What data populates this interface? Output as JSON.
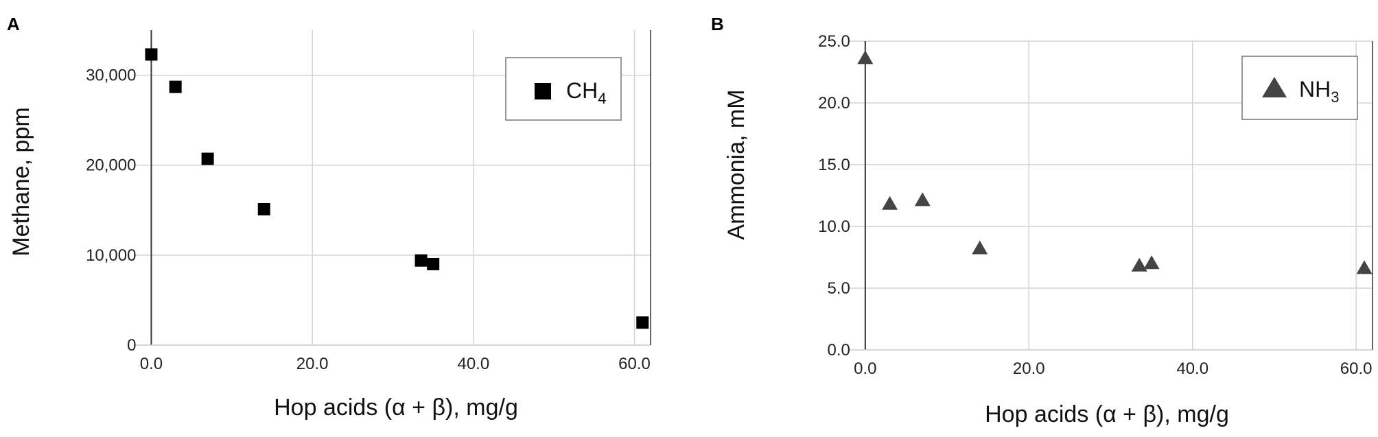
{
  "chart_data": [
    {
      "type": "scatter",
      "panel_label": "A",
      "xlabel": "Hop acids (α + β), mg/g",
      "ylabel": "Methane, ppm",
      "xlim": [
        -2,
        62
      ],
      "ylim": [
        0,
        35000
      ],
      "x_ticks": [
        0,
        20,
        40,
        60
      ],
      "x_tick_labels": [
        "0.0",
        "20.0",
        "40.0",
        "60.0"
      ],
      "y_ticks": [
        0,
        10000,
        20000,
        30000
      ],
      "y_tick_labels": [
        "0",
        "10,000",
        "20,000",
        "30,000"
      ],
      "grid": true,
      "legend_position": "top-right",
      "series": [
        {
          "name": "CH",
          "name_subscript": "4",
          "marker": "square",
          "color": "#000000",
          "x": [
            0,
            3,
            7,
            14,
            33.5,
            35,
            61
          ],
          "y": [
            32300,
            28700,
            20700,
            15100,
            9400,
            9000,
            2500
          ]
        }
      ]
    },
    {
      "type": "scatter",
      "panel_label": "B",
      "xlabel": "Hop acids (α + β), mg/g",
      "ylabel": "Ammonia, mM",
      "xlim": [
        -2,
        62
      ],
      "ylim": [
        0,
        25
      ],
      "x_ticks": [
        0,
        20,
        40,
        60
      ],
      "x_tick_labels": [
        "0.0",
        "20.0",
        "40.0",
        "60.0"
      ],
      "y_ticks": [
        0,
        5,
        10,
        15,
        20,
        25
      ],
      "y_tick_labels": [
        "0.0",
        "5.0",
        "10.0",
        "15.0",
        "20.0",
        "25.0"
      ],
      "grid": true,
      "legend_position": "top-right",
      "series": [
        {
          "name": "NH",
          "name_subscript": "3",
          "marker": "triangle",
          "color": "#444444",
          "x": [
            0,
            3,
            7,
            14,
            33.5,
            35,
            61
          ],
          "y": [
            23.7,
            11.9,
            12.2,
            8.3,
            6.9,
            7.1,
            6.7
          ]
        }
      ]
    }
  ]
}
